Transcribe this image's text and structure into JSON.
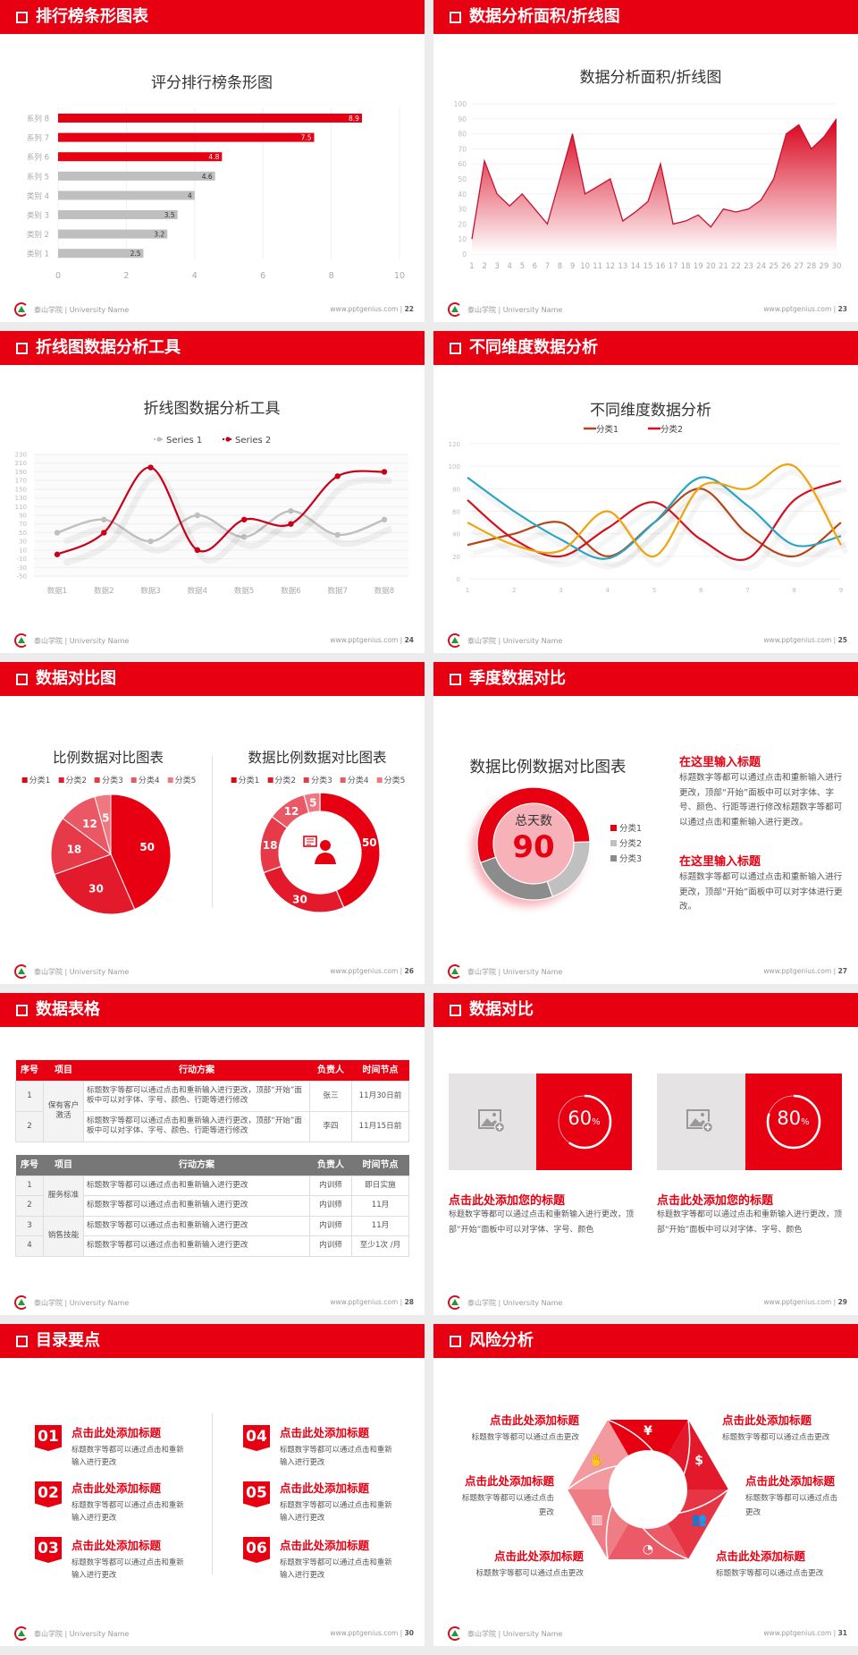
{
  "footer": {
    "school": "泰山学院 | University Name",
    "site": "www.pptgenius.com",
    "sep": " | "
  },
  "colors": {
    "accent": "#e60012",
    "gray": "#bfbfbf",
    "darkgray": "#808080"
  },
  "slides": [
    {
      "title": "排行榜条形图表",
      "page": "22"
    },
    {
      "title": "数据分析面积/折线图",
      "page": "23"
    },
    {
      "title": "折线图数据分析工具",
      "page": "24"
    },
    {
      "title": "不同维度数据分析",
      "page": "25"
    },
    {
      "title": "数据对比图",
      "page": "26"
    },
    {
      "title": "季度数据对比",
      "page": "27"
    },
    {
      "title": "数据表格",
      "page": "28"
    },
    {
      "title": "数据对比",
      "page": "29"
    },
    {
      "title": "目录要点",
      "page": "30"
    },
    {
      "title": "风险分析",
      "page": "31"
    }
  ],
  "chart_data": [
    {
      "type": "bar",
      "orientation": "horizontal",
      "title": "评分排行榜条形图",
      "categories": [
        "系列 8",
        "系列 7",
        "系列 6",
        "系列 5",
        "类别 4",
        "类别 3",
        "类别 2",
        "类别 1"
      ],
      "values": [
        8.9,
        7.5,
        4.8,
        4.6,
        4,
        3.5,
        3.2,
        2.5
      ],
      "labels": [
        "8.9",
        "7.5",
        "4.8",
        "4.6",
        "4",
        "3.5",
        "3.2",
        "2.5"
      ],
      "bar_colors": [
        "#e60012",
        "#e60012",
        "#e60012",
        "#bfbfbf",
        "#bfbfbf",
        "#bfbfbf",
        "#bfbfbf",
        "#bfbfbf"
      ],
      "xlim": [
        0,
        10
      ],
      "xticks": [
        "0",
        "2",
        "4",
        "6",
        "8",
        "10"
      ],
      "grid": true
    },
    {
      "type": "area",
      "title": "数据分析面积/折线图",
      "x": [
        "1",
        "2",
        "3",
        "4",
        "5",
        "6",
        "7",
        "8",
        "9",
        "10",
        "11",
        "12",
        "13",
        "14",
        "15",
        "16",
        "17",
        "18",
        "19",
        "20",
        "21",
        "22",
        "23",
        "24",
        "25",
        "26",
        "27",
        "28",
        "29",
        "30"
      ],
      "values": [
        10,
        62,
        40,
        32,
        40,
        30,
        20,
        50,
        80,
        40,
        45,
        50,
        22,
        28,
        35,
        60,
        20,
        22,
        26,
        18,
        30,
        28,
        30,
        36,
        50,
        80,
        86,
        70,
        78,
        90
      ],
      "ylim": [
        0,
        100
      ],
      "yticks": [
        "0",
        "10",
        "20",
        "30",
        "40",
        "50",
        "60",
        "70",
        "80",
        "90",
        "100"
      ],
      "color": "#d0101e",
      "grid": true
    },
    {
      "type": "line",
      "smooth": true,
      "title": "折线图数据分析工具",
      "categories": [
        "数据1",
        "数据2",
        "数据3",
        "数据4",
        "数据5",
        "数据6",
        "数据7",
        "数据8"
      ],
      "series": [
        {
          "name": "Series 1",
          "values": [
            50,
            80,
            30,
            90,
            40,
            100,
            45,
            80
          ],
          "color": "#bfbfbf"
        },
        {
          "name": "Series 2",
          "values": [
            0,
            50,
            200,
            10,
            80,
            70,
            180,
            190
          ],
          "color": "#c8001a"
        }
      ],
      "ylim": [
        -50,
        230
      ],
      "yticks": [
        "230",
        "210",
        "190",
        "170",
        "150",
        "130",
        "110",
        "90",
        "70",
        "50",
        "30",
        "10",
        "-10",
        "-30",
        "-50"
      ],
      "legend": "top",
      "grid": true
    },
    {
      "type": "line",
      "smooth": true,
      "title": "不同维度数据分析",
      "categories": [
        "1",
        "2",
        "3",
        "4",
        "5",
        "6",
        "7",
        "8",
        "9"
      ],
      "series": [
        {
          "name": "分类1",
          "values": [
            30,
            40,
            50,
            20,
            50,
            80,
            40,
            20,
            50
          ],
          "color": "#b5461b"
        },
        {
          "name": "分类2",
          "values": [
            70,
            35,
            20,
            45,
            68,
            35,
            18,
            70,
            87
          ],
          "color": "#d50f1f"
        },
        {
          "values": [
            90,
            60,
            35,
            18,
            50,
            90,
            65,
            30,
            38
          ],
          "color": "#2aa6c4"
        },
        {
          "values": [
            50,
            30,
            25,
            60,
            20,
            82,
            80,
            100,
            30
          ],
          "color": "#f0a30a"
        }
      ],
      "ylim": [
        0,
        120
      ],
      "yticks": [
        "0",
        "20",
        "40",
        "60",
        "80",
        "100",
        "120"
      ],
      "legend": "top",
      "grid": true
    },
    {
      "type": "pie",
      "title": "比例数据对比图表",
      "categories": [
        "分类1",
        "分类2",
        "分类3",
        "分类4",
        "分类5"
      ],
      "values": [
        50,
        30,
        18,
        12,
        5
      ],
      "colors": [
        "#e60012",
        "#e21a2c",
        "#e63a49",
        "#ea5865",
        "#ee7780"
      ],
      "legend": "top"
    },
    {
      "type": "donut",
      "title": "数据比例数据对比图表",
      "categories": [
        "分类1",
        "分类2",
        "分类3",
        "分类4",
        "分类5"
      ],
      "values": [
        50,
        30,
        18,
        12,
        5
      ],
      "colors": [
        "#e60012",
        "#e21a2c",
        "#e63a49",
        "#ea5865",
        "#ee7780"
      ],
      "legend": "top",
      "center_icon": "person-chat-icon"
    },
    {
      "type": "donut",
      "title": "数据比例数据对比图表",
      "categories": [
        "分类1",
        "分类2",
        "分类3"
      ],
      "values": [
        55,
        20,
        25
      ],
      "colors": [
        "#e60012",
        "#c0c0c0",
        "#8c8c8c"
      ],
      "legend": "right",
      "center_label": "总天数",
      "center_value": "90"
    }
  ],
  "s6": {
    "blocks": [
      {
        "heading": "在这里输入标题",
        "text": "标题数字等都可以通过点击和重新输入进行更改，顶部“开始”面板中可以对字体、字号、颜色、行距等进行修改标题数字等都可以通过点击和重新输入进行更改。"
      },
      {
        "heading": "在这里输入标题",
        "text": "标题数字等都可以通过点击和重新输入进行更改，顶部“开始”面板中可以对字体进行更改。"
      }
    ]
  },
  "s7": {
    "headers": [
      "序号",
      "项目",
      "行动方案",
      "负责人",
      "时间节点"
    ],
    "table1": {
      "group": "保有客户激活",
      "rows": [
        {
          "no": "1",
          "plan": "标题数字等都可以通过点击和重新输入进行更改，顶部“开始”面板中可以对字体、字号、颜色、行距等进行修改",
          "owner": "张三",
          "time": "11月30日前"
        },
        {
          "no": "2",
          "plan": "标题数字等都可以通过点击和重新输入进行更改，顶部“开始”面板中可以对字体、字号、颜色、行距等进行修改",
          "owner": "李四",
          "time": "11月15日前"
        }
      ]
    },
    "table2": {
      "groups": [
        "服务标准",
        "销售技能"
      ],
      "rows": [
        {
          "no": "1",
          "plan": "标题数字等都可以通过点击和重新输入进行更改",
          "owner": "内训师",
          "time": "即日实施"
        },
        {
          "no": "2",
          "plan": "标题数字等都可以通过点击和重新输入进行更改",
          "owner": "内训师",
          "time": "11月"
        },
        {
          "no": "3",
          "plan": "标题数字等都可以通过点击和重新输入进行更改",
          "owner": "内训师",
          "time": "11月"
        },
        {
          "no": "4",
          "plan": "标题数字等都可以通过点击和重新输入进行更改",
          "owner": "内训师",
          "time": "至少1次 /月"
        }
      ]
    }
  },
  "s8": {
    "cards": [
      {
        "percent": 60,
        "value": "60",
        "unit": "%",
        "heading": "点击此处添加您的标题",
        "text": "标题数字等都可以通过点击和重新输入进行更改，顶部“开始”面板中可以对字体、字号、颜色",
        "image_icon": "image-add-icon"
      },
      {
        "percent": 80,
        "value": "80",
        "unit": "%",
        "heading": "点击此处添加您的标题",
        "text": "标题数字等都可以通过点击和重新输入进行更改，顶部“开始”面板中可以对字体、字号、颜色",
        "image_icon": "image-add-icon"
      }
    ]
  },
  "s9": {
    "items": [
      {
        "num": "01",
        "heading": "点击此处添加标题",
        "text": "标题数字等都可以通过点击和重新输入进行更改"
      },
      {
        "num": "02",
        "heading": "点击此处添加标题",
        "text": "标题数字等都可以通过点击和重新输入进行更改"
      },
      {
        "num": "03",
        "heading": "点击此处添加标题",
        "text": "标题数字等都可以通过点击和重新输入进行更改"
      },
      {
        "num": "04",
        "heading": "点击此处添加标题",
        "text": "标题数字等都可以通过点击和重新输入进行更改"
      },
      {
        "num": "05",
        "heading": "点击此处添加标题",
        "text": "标题数字等都可以通过点击和重新输入进行更改"
      },
      {
        "num": "06",
        "heading": "点击此处添加标题",
        "text": "标题数字等都可以通过点击和重新输入进行更改"
      }
    ]
  },
  "s10": {
    "items": [
      {
        "heading": "点击此处添加标题",
        "text": "标题数字等都可以通过点击更改"
      },
      {
        "heading": "点击此处添加标题",
        "text": "标题数字等都可以通过点击更改"
      },
      {
        "heading": "点击此处添加标题",
        "text": "标题数字等都可以通过点击更改"
      },
      {
        "heading": "点击此处添加标题",
        "text": "标题数字等都可以通过点击更改"
      },
      {
        "heading": "点击此处添加标题",
        "text": "标题数字等都可以通过点击更改"
      },
      {
        "heading": "点击此处添加标题",
        "text": "标题数字等都可以通过点击更改"
      }
    ],
    "icons": [
      "money-bag-icon",
      "coins-icon",
      "users-icon",
      "pie-chart-icon",
      "building-icon",
      "hand-money-icon"
    ]
  }
}
